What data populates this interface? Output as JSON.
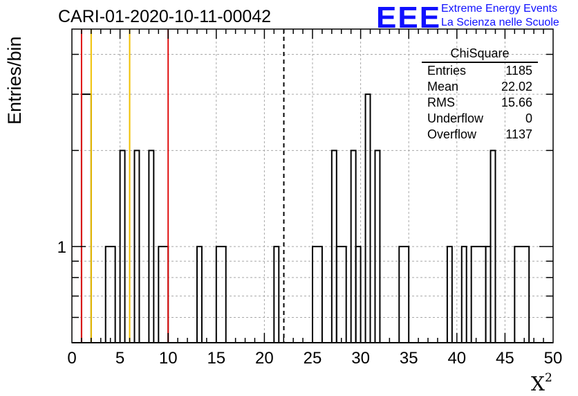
{
  "header": {
    "run_id": "CARI-01-2020-10-11-00042",
    "logo_text": "EEE",
    "logo_line1": "Extreme Energy Events",
    "logo_line2": "La Scienza nelle Scuole"
  },
  "stats_box": {
    "title": "ChiSquare",
    "rows": [
      {
        "label": "Entries",
        "value": "1185"
      },
      {
        "label": "Mean",
        "value": "22.02"
      },
      {
        "label": "RMS",
        "value": "15.66"
      },
      {
        "label": "Underflow",
        "value": "0"
      },
      {
        "label": "Overflow",
        "value": "1137"
      }
    ]
  },
  "chart_data": {
    "type": "bar",
    "title": "CARI-01-2020-10-11-00042",
    "xlabel": "X",
    "xlabel_superscript": "2",
    "ylabel": "Entries/bin",
    "xlim": [
      0,
      50
    ],
    "ylim": [
      0.5,
      4.8
    ],
    "yscale": "log",
    "grid": true,
    "bin_width": 1,
    "x_ticks": [
      "0",
      "5",
      "10",
      "15",
      "20",
      "25",
      "30",
      "35",
      "40",
      "45",
      "50"
    ],
    "y_tick_label": "1",
    "bins": [
      {
        "x0": 1,
        "x1": 2,
        "count": 3
      },
      {
        "x0": 3.5,
        "x1": 4.5,
        "count": 1
      },
      {
        "x0": 5,
        "x1": 5.5,
        "count": 2
      },
      {
        "x0": 6.5,
        "x1": 7,
        "count": 2
      },
      {
        "x0": 8,
        "x1": 8.5,
        "count": 2
      },
      {
        "x0": 9,
        "x1": 10,
        "count": 1
      },
      {
        "x0": 13,
        "x1": 13.5,
        "count": 1
      },
      {
        "x0": 15,
        "x1": 16,
        "count": 1
      },
      {
        "x0": 21,
        "x1": 21.5,
        "count": 1
      },
      {
        "x0": 25,
        "x1": 26,
        "count": 1
      },
      {
        "x0": 27,
        "x1": 27.5,
        "count": 2
      },
      {
        "x0": 27.5,
        "x1": 28.5,
        "count": 1
      },
      {
        "x0": 29,
        "x1": 29.5,
        "count": 2
      },
      {
        "x0": 29.5,
        "x1": 30,
        "count": 1
      },
      {
        "x0": 30.5,
        "x1": 31,
        "count": 3
      },
      {
        "x0": 31.5,
        "x1": 32,
        "count": 2
      },
      {
        "x0": 34,
        "x1": 35,
        "count": 1
      },
      {
        "x0": 39,
        "x1": 39.5,
        "count": 1
      },
      {
        "x0": 40.5,
        "x1": 41,
        "count": 1
      },
      {
        "x0": 41.5,
        "x1": 43,
        "count": 1
      },
      {
        "x0": 43,
        "x1": 43.5,
        "count": 1
      },
      {
        "x0": 43.5,
        "x1": 44,
        "count": 2
      },
      {
        "x0": 46,
        "x1": 47.5,
        "count": 1
      }
    ],
    "vertical_lines": [
      {
        "x": 1,
        "color": "#e01010",
        "style": "solid"
      },
      {
        "x": 2,
        "color": "#f0c000",
        "style": "solid"
      },
      {
        "x": 6,
        "color": "#f0c000",
        "style": "solid"
      },
      {
        "x": 10,
        "color": "#e01010",
        "style": "solid"
      },
      {
        "x": 22.02,
        "color": "#000000",
        "style": "dashed"
      }
    ]
  }
}
